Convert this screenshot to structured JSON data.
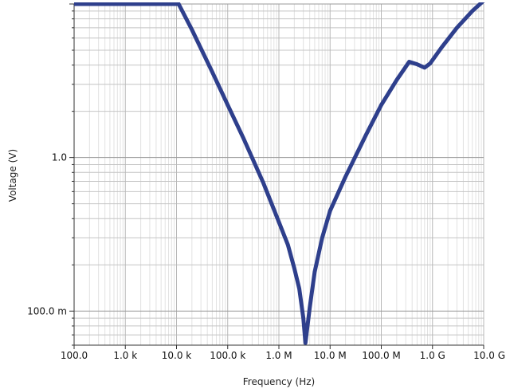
{
  "chart_data": {
    "type": "line",
    "xlabel": "Frequency (Hz)",
    "ylabel": "Voltage (V)",
    "x_scale": "log",
    "y_scale": "log",
    "xlim": [
      100,
      10000000000
    ],
    "ylim": [
      0.06,
      10
    ],
    "grid": true,
    "line_color": "#2e3f8c",
    "x_ticks": [
      {
        "value": 100,
        "label": "100.0"
      },
      {
        "value": 1000,
        "label": "1.0 k"
      },
      {
        "value": 10000,
        "label": "10.0 k"
      },
      {
        "value": 100000,
        "label": "100.0 k"
      },
      {
        "value": 1000000,
        "label": "1.0 M"
      },
      {
        "value": 10000000,
        "label": "10.0 M"
      },
      {
        "value": 100000000,
        "label": "100.0 M"
      },
      {
        "value": 1000000000,
        "label": "1.0 G"
      },
      {
        "value": 10000000000,
        "label": "10.0 G"
      }
    ],
    "y_ticks": [
      {
        "value": 0.1,
        "label": "100.0 m"
      },
      {
        "value": 1.0,
        "label": "1.0"
      }
    ],
    "series": [
      {
        "x": [
          100,
          1000,
          10000,
          11000,
          20000,
          50000,
          100000,
          200000,
          500000,
          1000000,
          1500000,
          2000000,
          2500000,
          3000000,
          3300000,
          4000000,
          5000000,
          7000000,
          10000000,
          20000000,
          50000000,
          100000000,
          200000000,
          350000000,
          500000000,
          700000000,
          900000000,
          1500000000,
          3000000000,
          6000000000,
          10000000000
        ],
        "y": [
          10,
          10,
          10,
          10,
          6.8,
          3.6,
          2.2,
          1.35,
          0.68,
          0.38,
          0.27,
          0.19,
          0.14,
          0.09,
          0.062,
          0.105,
          0.18,
          0.3,
          0.45,
          0.75,
          1.4,
          2.2,
          3.2,
          4.2,
          4.05,
          3.85,
          4.1,
          5.2,
          7.0,
          9.0,
          10.5
        ]
      }
    ]
  }
}
